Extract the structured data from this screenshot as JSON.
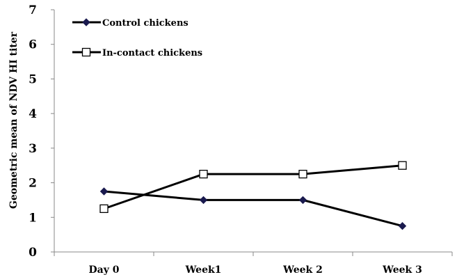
{
  "chart_data": {
    "type": "line",
    "title": "",
    "xlabel": "",
    "ylabel": "Geometric mean of NDV HI titer",
    "categories": [
      "Day 0",
      "Week1",
      "Week 2",
      "Week 3"
    ],
    "yticks": [
      "0",
      "1",
      "2",
      "3",
      "4",
      "5",
      "6",
      "7"
    ],
    "ylim": [
      0,
      7
    ],
    "grid": false,
    "legend": "top-left",
    "series": [
      {
        "name": "Control chickens",
        "values": [
          1.75,
          1.5,
          1.5,
          0.75
        ],
        "marker": "diamond",
        "color": "#1a1a4e"
      },
      {
        "name": "In-contact chickens",
        "values": [
          1.25,
          2.25,
          2.25,
          2.5
        ],
        "marker": "square",
        "color": "#000000"
      }
    ]
  }
}
